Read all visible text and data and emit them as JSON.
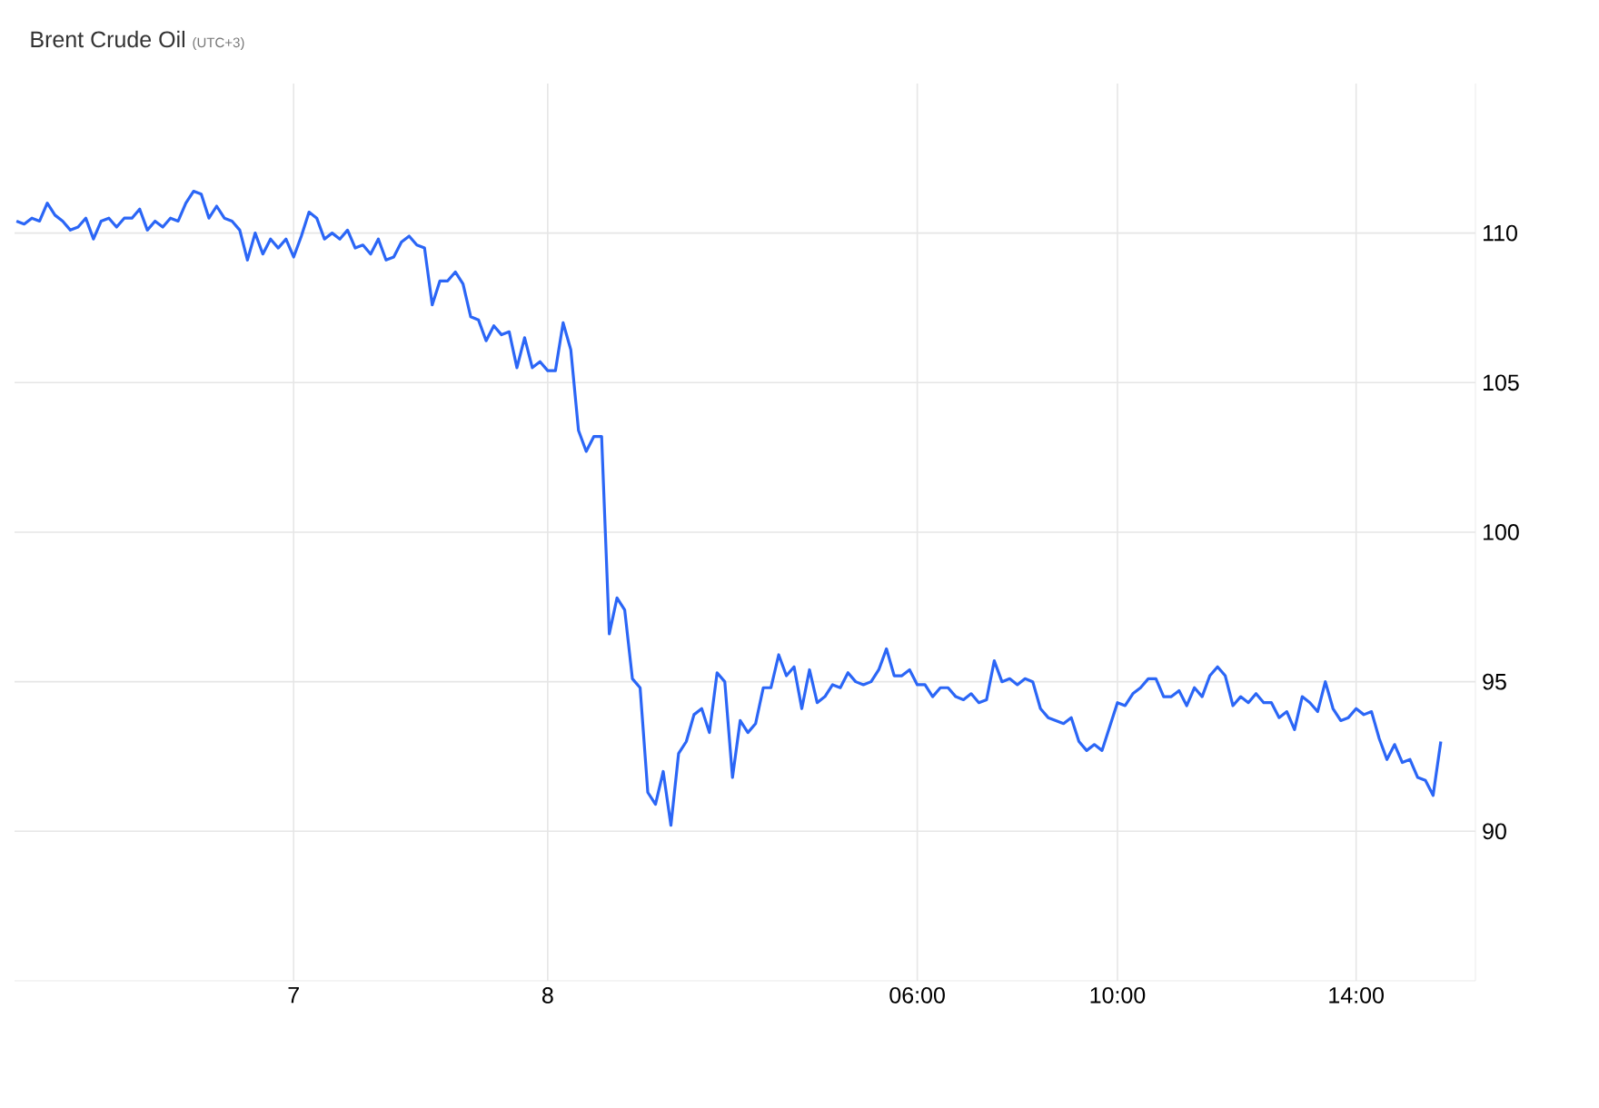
{
  "chart_data": {
    "type": "line",
    "title": "Brent Crude Oil",
    "subtitle": "(UTC+3)",
    "categories": [
      null,
      null,
      null,
      null,
      null,
      null,
      null,
      null,
      null,
      null,
      null,
      null,
      null,
      null,
      null,
      null,
      null,
      null,
      null,
      null,
      null,
      null,
      null,
      null,
      null,
      null,
      null,
      null,
      null,
      null,
      null,
      null,
      null,
      null,
      null,
      null,
      "7",
      null,
      null,
      null,
      null,
      null,
      null,
      null,
      null,
      null,
      null,
      null,
      null,
      null,
      null,
      null,
      null,
      null,
      null,
      null,
      null,
      null,
      null,
      null,
      null,
      null,
      null,
      null,
      null,
      null,
      null,
      null,
      null,
      "8",
      null,
      null,
      null,
      null,
      null,
      null,
      null,
      null,
      null,
      null,
      null,
      null,
      null,
      null,
      null,
      null,
      null,
      null,
      null,
      null,
      null,
      null,
      null,
      null,
      null,
      null,
      null,
      null,
      null,
      null,
      null,
      null,
      null,
      null,
      null,
      null,
      null,
      null,
      null,
      null,
      null,
      null,
      null,
      null,
      null,
      null,
      null,
      "06:00",
      null,
      null,
      null,
      null,
      null,
      null,
      null,
      null,
      null,
      null,
      null,
      null,
      null,
      null,
      null,
      null,
      null,
      null,
      null,
      null,
      null,
      null,
      null,
      null,
      null,
      "10:00",
      null,
      null,
      null,
      null,
      null,
      null,
      null,
      null,
      null,
      null,
      null,
      null,
      null,
      null,
      null,
      null,
      null,
      null,
      null,
      null,
      null,
      null,
      null,
      null,
      null,
      null,
      null,
      null,
      null,
      null,
      "14:00",
      null,
      null,
      null,
      null,
      null,
      null,
      null,
      null,
      null,
      null,
      null
    ],
    "series": [
      {
        "color": "#2b66f6",
        "values": [
          110.4,
          110.3,
          110.5,
          110.4,
          111.0,
          110.6,
          110.4,
          110.1,
          110.2,
          110.5,
          109.8,
          110.4,
          110.5,
          110.2,
          110.5,
          110.5,
          110.8,
          110.1,
          110.4,
          110.2,
          110.5,
          110.4,
          111.0,
          111.4,
          111.3,
          110.5,
          110.9,
          110.5,
          110.4,
          110.1,
          109.1,
          110.0,
          109.3,
          109.8,
          109.5,
          109.8,
          109.2,
          109.9,
          110.7,
          110.5,
          109.8,
          110.0,
          109.8,
          110.1,
          109.5,
          109.6,
          109.3,
          109.8,
          109.1,
          109.2,
          109.7,
          109.9,
          109.6,
          109.5,
          107.6,
          108.4,
          108.4,
          108.7,
          108.3,
          107.2,
          107.1,
          106.4,
          106.9,
          106.6,
          106.7,
          105.5,
          106.5,
          105.5,
          105.7,
          105.4,
          105.4,
          107.0,
          106.1,
          103.4,
          102.7,
          103.2,
          103.2,
          96.6,
          97.8,
          97.4,
          95.1,
          94.8,
          91.3,
          90.9,
          92.0,
          90.2,
          92.6,
          93.0,
          93.9,
          94.1,
          93.3,
          95.3,
          95.0,
          91.8,
          93.7,
          93.3,
          93.6,
          94.8,
          94.8,
          95.9,
          95.2,
          95.5,
          94.1,
          95.4,
          94.3,
          94.5,
          94.9,
          94.8,
          95.3,
          95.0,
          94.9,
          95.0,
          95.4,
          96.1,
          95.2,
          95.2,
          95.4,
          94.9,
          94.9,
          94.5,
          94.8,
          94.8,
          94.5,
          94.4,
          94.6,
          94.3,
          94.4,
          95.7,
          95.0,
          95.1,
          94.9,
          95.1,
          95.0,
          94.1,
          93.8,
          93.7,
          93.6,
          93.8,
          93.0,
          92.7,
          92.9,
          92.7,
          93.5,
          94.3,
          94.2,
          94.6,
          94.8,
          95.1,
          95.1,
          94.5,
          94.5,
          94.7,
          94.2,
          94.8,
          94.5,
          95.2,
          95.5,
          95.2,
          94.2,
          94.5,
          94.3,
          94.6,
          94.3,
          94.3,
          93.8,
          94.0,
          93.4,
          94.5,
          94.3,
          94.0,
          95.0,
          94.1,
          93.7,
          93.8,
          94.1,
          93.9,
          94.0,
          93.1,
          92.4,
          92.9,
          92.3,
          92.4,
          91.8,
          91.7,
          91.2,
          93.0
        ]
      }
    ],
    "ylim": [
      85,
      115
    ],
    "yticks": [
      90,
      95,
      100,
      105,
      110
    ],
    "grid": true,
    "marker": "none",
    "line_style": "solid"
  }
}
